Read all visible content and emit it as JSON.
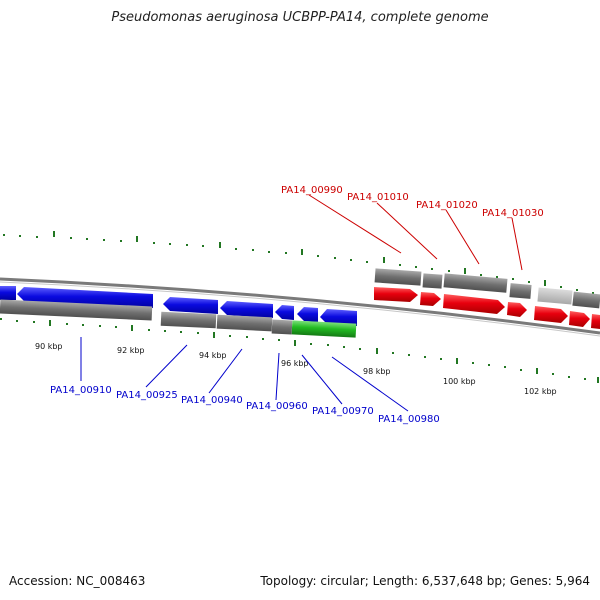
{
  "title": "Pseudomonas aeruginosa UCBPP-PA14, complete genome",
  "footer": {
    "accession": "Accession: NC_008463",
    "topology": "Topology: circular; Length: 6,537,648 bp; Genes: 5,964"
  },
  "colors": {
    "forward_gene": "#e8000e",
    "reverse_gene": "#0a0ae0",
    "highlight_gene": "#22bb22",
    "cds": "#707070",
    "cds_light": "#b8b8b8",
    "ruler": "#227722"
  },
  "ruler": {
    "ticks": [
      {
        "label": "90 kbp"
      },
      {
        "label": "92 kbp"
      },
      {
        "label": "94 kbp"
      },
      {
        "label": "96 kbp"
      },
      {
        "label": "98 kbp"
      },
      {
        "label": "100 kbp"
      },
      {
        "label": "102 kbp"
      }
    ]
  },
  "labels": {
    "forward": [
      "PA14_00990",
      "PA14_01010",
      "PA14_01020",
      "PA14_01030"
    ],
    "reverse": [
      "PA14_00910",
      "PA14_00925",
      "PA14_00940",
      "PA14_00960",
      "PA14_00970",
      "PA14_00980"
    ]
  }
}
